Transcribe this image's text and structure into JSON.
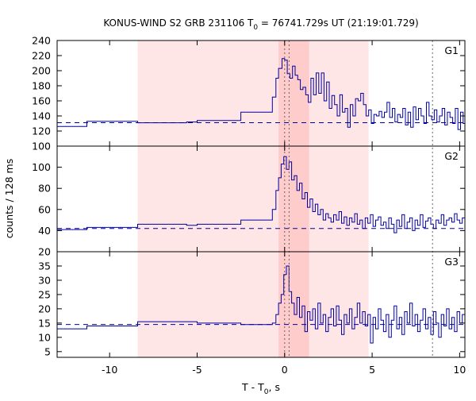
{
  "chart_data": {
    "type": "line",
    "title": {
      "prefix": "KONUS-WIND S2 GRB 231106 T",
      "sub": "0",
      "suffix": " = 76741.729s UT (21:19:01.729)"
    },
    "xlabel": {
      "prefix": "T - T",
      "sub": "0",
      "suffix": ", s"
    },
    "ylabel": "counts / 128 ms",
    "xlim": [
      -13,
      10.3
    ],
    "x_ticks": [
      -10,
      -5,
      0,
      5,
      10
    ],
    "shaded_intervals": [
      [
        -8.4,
        4.8
      ],
      [
        -0.35,
        1.4
      ]
    ],
    "vertical_lines": [
      0,
      0.256,
      8.45
    ],
    "panels": [
      {
        "name": "G1",
        "ylim": [
          100,
          240
        ],
        "y_ticks": [
          100,
          120,
          140,
          160,
          180,
          200,
          220,
          240
        ],
        "background": 131,
        "steps": [
          [
            -13,
            126
          ],
          [
            -11.3,
            133
          ],
          [
            -8.4,
            131
          ],
          [
            -5.6,
            132
          ],
          [
            -5,
            134
          ],
          [
            -2.5,
            145
          ],
          [
            -0.7,
            165
          ],
          [
            -0.5,
            190
          ],
          [
            -0.35,
            203
          ],
          [
            -0.15,
            216
          ],
          [
            0,
            214
          ],
          [
            0.15,
            196
          ],
          [
            0.3,
            190
          ],
          [
            0.45,
            206
          ],
          [
            0.6,
            194
          ],
          [
            0.75,
            188
          ],
          [
            0.9,
            175
          ],
          [
            1.05,
            178
          ],
          [
            1.2,
            168
          ],
          [
            1.35,
            158
          ],
          [
            1.5,
            190
          ],
          [
            1.65,
            168
          ],
          [
            1.8,
            197
          ],
          [
            1.95,
            170
          ],
          [
            2.1,
            197
          ],
          [
            2.25,
            160
          ],
          [
            2.4,
            185
          ],
          [
            2.55,
            150
          ],
          [
            2.7,
            167
          ],
          [
            2.85,
            155
          ],
          [
            3.0,
            140
          ],
          [
            3.15,
            168
          ],
          [
            3.3,
            145
          ],
          [
            3.45,
            150
          ],
          [
            3.6,
            125
          ],
          [
            3.75,
            155
          ],
          [
            3.9,
            140
          ],
          [
            4.05,
            163
          ],
          [
            4.2,
            160
          ],
          [
            4.35,
            170
          ],
          [
            4.5,
            155
          ],
          [
            4.65,
            140
          ],
          [
            4.8,
            148
          ],
          [
            4.95,
            130
          ],
          [
            5.1,
            142
          ],
          [
            5.25,
            140
          ],
          [
            5.4,
            146
          ],
          [
            5.55,
            138
          ],
          [
            5.7,
            145
          ],
          [
            5.85,
            158
          ],
          [
            6.0,
            138
          ],
          [
            6.15,
            150
          ],
          [
            6.3,
            132
          ],
          [
            6.45,
            142
          ],
          [
            6.6,
            138
          ],
          [
            6.75,
            150
          ],
          [
            6.9,
            128
          ],
          [
            7.05,
            145
          ],
          [
            7.2,
            125
          ],
          [
            7.35,
            152
          ],
          [
            7.5,
            135
          ],
          [
            7.65,
            150
          ],
          [
            7.8,
            140
          ],
          [
            7.95,
            130
          ],
          [
            8.1,
            158
          ],
          [
            8.25,
            140
          ],
          [
            8.4,
            135
          ],
          [
            8.55,
            148
          ],
          [
            8.7,
            132
          ],
          [
            8.85,
            140
          ],
          [
            9.0,
            150
          ],
          [
            9.15,
            128
          ],
          [
            9.3,
            145
          ],
          [
            9.45,
            138
          ],
          [
            9.6,
            130
          ],
          [
            9.75,
            150
          ],
          [
            9.9,
            122
          ],
          [
            10.05,
            145
          ],
          [
            10.2,
            130
          ]
        ]
      },
      {
        "name": "G2",
        "ylim": [
          20,
          120
        ],
        "y_ticks": [
          20,
          40,
          60,
          80,
          100
        ],
        "background": 42,
        "steps": [
          [
            -13,
            41
          ],
          [
            -11.3,
            43
          ],
          [
            -8.4,
            46
          ],
          [
            -5.6,
            45
          ],
          [
            -5,
            46
          ],
          [
            -2.5,
            50
          ],
          [
            -0.7,
            60
          ],
          [
            -0.5,
            78
          ],
          [
            -0.35,
            90
          ],
          [
            -0.2,
            103
          ],
          [
            -0.05,
            110
          ],
          [
            0.1,
            98
          ],
          [
            0.25,
            105
          ],
          [
            0.4,
            88
          ],
          [
            0.55,
            92
          ],
          [
            0.7,
            78
          ],
          [
            0.85,
            85
          ],
          [
            1.0,
            70
          ],
          [
            1.15,
            76
          ],
          [
            1.3,
            62
          ],
          [
            1.45,
            70
          ],
          [
            1.6,
            58
          ],
          [
            1.75,
            65
          ],
          [
            1.9,
            55
          ],
          [
            2.05,
            60
          ],
          [
            2.2,
            50
          ],
          [
            2.35,
            56
          ],
          [
            2.5,
            52
          ],
          [
            2.65,
            48
          ],
          [
            2.8,
            55
          ],
          [
            2.95,
            50
          ],
          [
            3.1,
            58
          ],
          [
            3.25,
            47
          ],
          [
            3.4,
            53
          ],
          [
            3.55,
            45
          ],
          [
            3.7,
            52
          ],
          [
            3.85,
            48
          ],
          [
            4.0,
            56
          ],
          [
            4.15,
            46
          ],
          [
            4.3,
            50
          ],
          [
            4.45,
            42
          ],
          [
            4.6,
            52
          ],
          [
            4.75,
            47
          ],
          [
            4.9,
            55
          ],
          [
            5.05,
            44
          ],
          [
            5.2,
            50
          ],
          [
            5.35,
            53
          ],
          [
            5.5,
            45
          ],
          [
            5.65,
            48
          ],
          [
            5.8,
            42
          ],
          [
            5.95,
            52
          ],
          [
            6.1,
            46
          ],
          [
            6.25,
            38
          ],
          [
            6.4,
            50
          ],
          [
            6.55,
            44
          ],
          [
            6.7,
            55
          ],
          [
            6.85,
            42
          ],
          [
            7.0,
            48
          ],
          [
            7.15,
            52
          ],
          [
            7.3,
            40
          ],
          [
            7.45,
            50
          ],
          [
            7.6,
            45
          ],
          [
            7.75,
            55
          ],
          [
            7.9,
            43
          ],
          [
            8.05,
            49
          ],
          [
            8.2,
            52
          ],
          [
            8.35,
            46
          ],
          [
            8.5,
            42
          ],
          [
            8.65,
            50
          ],
          [
            8.8,
            47
          ],
          [
            8.95,
            55
          ],
          [
            9.1,
            45
          ],
          [
            9.25,
            50
          ],
          [
            9.4,
            52
          ],
          [
            9.55,
            48
          ],
          [
            9.7,
            56
          ],
          [
            9.85,
            50
          ],
          [
            10.0,
            47
          ],
          [
            10.15,
            52
          ]
        ]
      },
      {
        "name": "G3",
        "ylim": [
          3,
          40
        ],
        "y_ticks": [
          5,
          10,
          15,
          20,
          25,
          30,
          35
        ],
        "background": 14.5,
        "steps": [
          [
            -13,
            13
          ],
          [
            -11.3,
            14
          ],
          [
            -8.4,
            15.5
          ],
          [
            -5.6,
            15.5
          ],
          [
            -5,
            15
          ],
          [
            -2.5,
            14.5
          ],
          [
            -0.7,
            15
          ],
          [
            -0.5,
            18
          ],
          [
            -0.35,
            22
          ],
          [
            -0.2,
            25
          ],
          [
            -0.05,
            32
          ],
          [
            0.1,
            35
          ],
          [
            0.25,
            26
          ],
          [
            0.4,
            22
          ],
          [
            0.55,
            18
          ],
          [
            0.7,
            24
          ],
          [
            0.85,
            17
          ],
          [
            1.0,
            21
          ],
          [
            1.15,
            12
          ],
          [
            1.3,
            19
          ],
          [
            1.45,
            16
          ],
          [
            1.6,
            20
          ],
          [
            1.75,
            13
          ],
          [
            1.9,
            22
          ],
          [
            2.05,
            15
          ],
          [
            2.2,
            18
          ],
          [
            2.35,
            12
          ],
          [
            2.5,
            17
          ],
          [
            2.65,
            20
          ],
          [
            2.8,
            14
          ],
          [
            2.95,
            21
          ],
          [
            3.1,
            16
          ],
          [
            3.25,
            11
          ],
          [
            3.4,
            18
          ],
          [
            3.55,
            15
          ],
          [
            3.7,
            20
          ],
          [
            3.85,
            13
          ],
          [
            4.0,
            17
          ],
          [
            4.15,
            22
          ],
          [
            4.3,
            15
          ],
          [
            4.45,
            19
          ],
          [
            4.6,
            14
          ],
          [
            4.75,
            18
          ],
          [
            4.9,
            8
          ],
          [
            5.05,
            17
          ],
          [
            5.2,
            13
          ],
          [
            5.35,
            20
          ],
          [
            5.5,
            16
          ],
          [
            5.65,
            12
          ],
          [
            5.8,
            18
          ],
          [
            5.95,
            10
          ],
          [
            6.1,
            16
          ],
          [
            6.25,
            21
          ],
          [
            6.4,
            13
          ],
          [
            6.55,
            17
          ],
          [
            6.7,
            11
          ],
          [
            6.85,
            19
          ],
          [
            7.0,
            15
          ],
          [
            7.15,
            22
          ],
          [
            7.3,
            14
          ],
          [
            7.45,
            18
          ],
          [
            7.6,
            12
          ],
          [
            7.75,
            16
          ],
          [
            7.9,
            20
          ],
          [
            8.05,
            13
          ],
          [
            8.2,
            17
          ],
          [
            8.35,
            11
          ],
          [
            8.5,
            19
          ],
          [
            8.65,
            15
          ],
          [
            8.8,
            10
          ],
          [
            8.95,
            18
          ],
          [
            9.1,
            14
          ],
          [
            9.25,
            20
          ],
          [
            9.4,
            13
          ],
          [
            9.55,
            17
          ],
          [
            9.7,
            12
          ],
          [
            9.85,
            19
          ],
          [
            10.0,
            15
          ],
          [
            10.15,
            18
          ]
        ]
      }
    ],
    "colors": {
      "line": "#0000a0",
      "background_line": "#0000a0",
      "shade_outer": "#ffe6e6",
      "shade_inner": "#ffcccc",
      "vline": "#666666",
      "axis": "#000000"
    }
  }
}
